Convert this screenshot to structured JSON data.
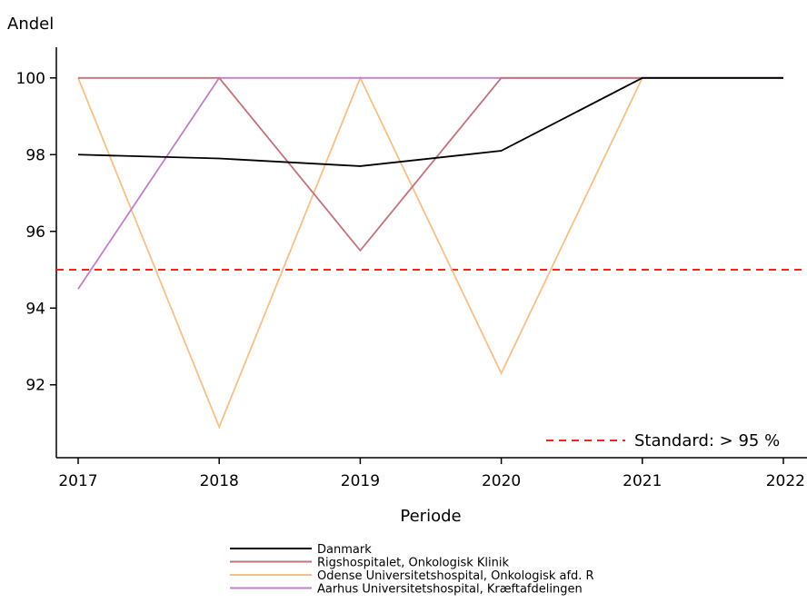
{
  "chart_data": {
    "type": "line",
    "ylabel": "Andel",
    "xlabel": "Periode",
    "x": [
      "2017",
      "2018",
      "2019",
      "2020",
      "2021",
      "2022"
    ],
    "ylim": [
      90.1,
      100.8
    ],
    "yticks": [
      "92",
      "94",
      "96",
      "98",
      "100"
    ],
    "series": [
      {
        "name": "Danmark",
        "color": "#000000",
        "values": [
          98.0,
          97.9,
          97.7,
          98.1,
          100,
          100
        ]
      },
      {
        "name": "Rigshospitalet, Onkologisk Klinik",
        "color": "#c0737a",
        "values": [
          100,
          100,
          95.5,
          100,
          100,
          100
        ]
      },
      {
        "name": "Odense Universitetshospital, Onkologisk afd. R",
        "color": "#f5c08a",
        "values": [
          100,
          90.9,
          100,
          92.3,
          100,
          100
        ]
      },
      {
        "name": "Aarhus Universitetshospital, Kræftafdelingen",
        "color": "#c080c8",
        "values": [
          94.5,
          100,
          100,
          100,
          100,
          100
        ]
      }
    ],
    "reference_line": {
      "label": "Standard: > 95 %",
      "value": 95,
      "color": "#ff2020"
    }
  }
}
